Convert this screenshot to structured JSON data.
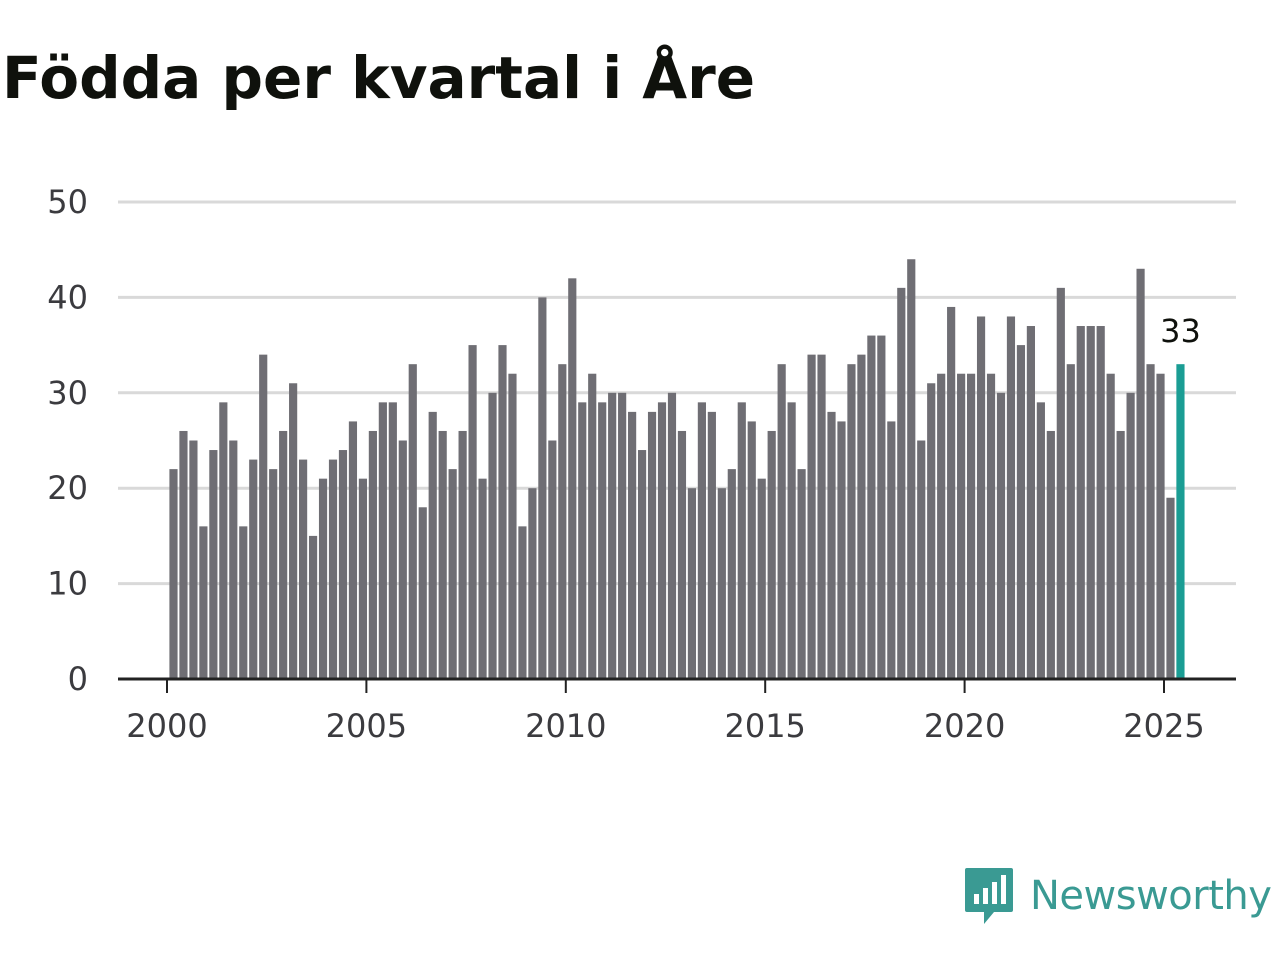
{
  "title": "Födda per kvartal i Åre",
  "brand": {
    "name": "Newsworthy",
    "logo_icon": "bar-chart-speech-bubble-icon",
    "color": "#3a9a93"
  },
  "colors": {
    "bar": "#6f6e74",
    "highlight": "#1a9d94",
    "grid": "#d9d9d9",
    "axis": "#222222"
  },
  "chart_data": {
    "type": "bar",
    "title": "Födda per kvartal i Åre",
    "xlabel": "",
    "ylabel": "",
    "ylim": [
      0,
      50
    ],
    "yticks": [
      0,
      10,
      20,
      30,
      40,
      50
    ],
    "xticks": [
      2000,
      2005,
      2010,
      2015,
      2020,
      2025
    ],
    "grid": true,
    "x_start": "2000 Q1",
    "frequency": "quarterly",
    "values": [
      22,
      26,
      25,
      16,
      24,
      29,
      25,
      16,
      23,
      34,
      22,
      26,
      31,
      23,
      15,
      21,
      23,
      24,
      27,
      21,
      26,
      29,
      29,
      25,
      33,
      18,
      28,
      26,
      22,
      26,
      35,
      21,
      30,
      35,
      32,
      16,
      20,
      40,
      25,
      33,
      42,
      29,
      32,
      29,
      30,
      30,
      28,
      24,
      28,
      29,
      30,
      26,
      20,
      29,
      28,
      20,
      22,
      29,
      27,
      21,
      26,
      33,
      29,
      22,
      34,
      34,
      28,
      27,
      33,
      34,
      36,
      36,
      27,
      41,
      44,
      25,
      31,
      32,
      39,
      32,
      32,
      38,
      32,
      30,
      38,
      35,
      37,
      29,
      26,
      41,
      33,
      37,
      37,
      37,
      32,
      26,
      30,
      43,
      33,
      32,
      19,
      33
    ],
    "highlight": {
      "index": 101,
      "label": "33"
    }
  }
}
